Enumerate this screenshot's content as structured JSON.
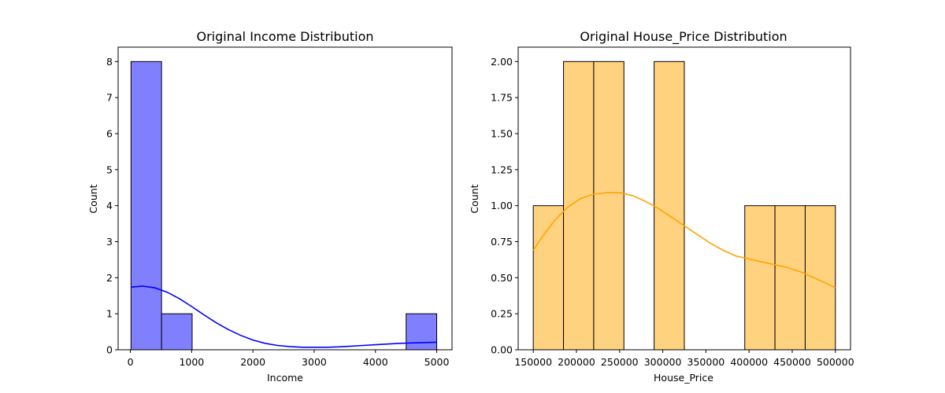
{
  "chart_data": [
    {
      "type": "bar",
      "title": "Original Income Distribution",
      "xlabel": "Income",
      "ylabel": "Count",
      "bar_color": "#8080ff",
      "kde_color": "#0000ff",
      "xlim": [
        -200,
        5250
      ],
      "ylim": [
        0,
        8.4
      ],
      "xticks": [
        0,
        1000,
        2000,
        3000,
        4000,
        5000
      ],
      "yticks": [
        0,
        1,
        2,
        3,
        4,
        5,
        6,
        7,
        8
      ],
      "bins": [
        {
          "x0": 10,
          "x1": 509,
          "count": 8
        },
        {
          "x0": 509,
          "x1": 1008,
          "count": 1
        },
        {
          "x0": 1008,
          "x1": 1507,
          "count": 0
        },
        {
          "x0": 1507,
          "x1": 2006,
          "count": 0
        },
        {
          "x0": 2006,
          "x1": 2505,
          "count": 0
        },
        {
          "x0": 2505,
          "x1": 3004,
          "count": 0
        },
        {
          "x0": 3004,
          "x1": 3503,
          "count": 0
        },
        {
          "x0": 3503,
          "x1": 4002,
          "count": 0
        },
        {
          "x0": 4002,
          "x1": 4501,
          "count": 0
        },
        {
          "x0": 4501,
          "x1": 5000,
          "count": 1
        }
      ],
      "kde": {
        "x": [
          10,
          200,
          400,
          600,
          800,
          1000,
          1200,
          1400,
          1600,
          1800,
          2000,
          2200,
          2400,
          2600,
          2800,
          3000,
          3200,
          3400,
          3600,
          3800,
          4000,
          4200,
          4400,
          4600,
          4800,
          5000
        ],
        "y": [
          1.74,
          1.77,
          1.72,
          1.6,
          1.42,
          1.2,
          0.97,
          0.75,
          0.56,
          0.4,
          0.27,
          0.18,
          0.12,
          0.09,
          0.07,
          0.07,
          0.07,
          0.08,
          0.1,
          0.12,
          0.14,
          0.16,
          0.18,
          0.19,
          0.2,
          0.21
        ]
      }
    },
    {
      "type": "bar",
      "title": "Original House_Price Distribution",
      "xlabel": "House_Price",
      "ylabel": "Count",
      "bar_color": "#ffd280",
      "kde_color": "#ffa500",
      "xlim": [
        132500,
        517500
      ],
      "ylim": [
        0,
        2.1
      ],
      "xticks": [
        150000,
        200000,
        250000,
        300000,
        350000,
        400000,
        450000,
        500000
      ],
      "yticks": [
        "0.00",
        "0.25",
        "0.50",
        "0.75",
        "1.00",
        "1.25",
        "1.50",
        "1.75",
        "2.00"
      ],
      "bins": [
        {
          "x0": 150000,
          "x1": 185000,
          "count": 1
        },
        {
          "x0": 185000,
          "x1": 220000,
          "count": 2
        },
        {
          "x0": 220000,
          "x1": 255000,
          "count": 2
        },
        {
          "x0": 255000,
          "x1": 290000,
          "count": 0
        },
        {
          "x0": 290000,
          "x1": 325000,
          "count": 2
        },
        {
          "x0": 325000,
          "x1": 360000,
          "count": 0
        },
        {
          "x0": 360000,
          "x1": 395000,
          "count": 0
        },
        {
          "x0": 395000,
          "x1": 430000,
          "count": 1
        },
        {
          "x0": 430000,
          "x1": 465000,
          "count": 1
        },
        {
          "x0": 465000,
          "x1": 500000,
          "count": 1
        }
      ],
      "kde": {
        "x": [
          150000,
          160000,
          175000,
          190000,
          205000,
          220000,
          235000,
          250000,
          265000,
          280000,
          295000,
          310000,
          325000,
          340000,
          355000,
          370000,
          385000,
          400000,
          415000,
          430000,
          445000,
          460000,
          475000,
          490000,
          500000
        ],
        "y": [
          0.69,
          0.78,
          0.9,
          0.99,
          1.05,
          1.08,
          1.09,
          1.09,
          1.07,
          1.03,
          0.98,
          0.92,
          0.86,
          0.8,
          0.74,
          0.69,
          0.65,
          0.63,
          0.61,
          0.59,
          0.57,
          0.54,
          0.5,
          0.46,
          0.43
        ]
      }
    }
  ]
}
